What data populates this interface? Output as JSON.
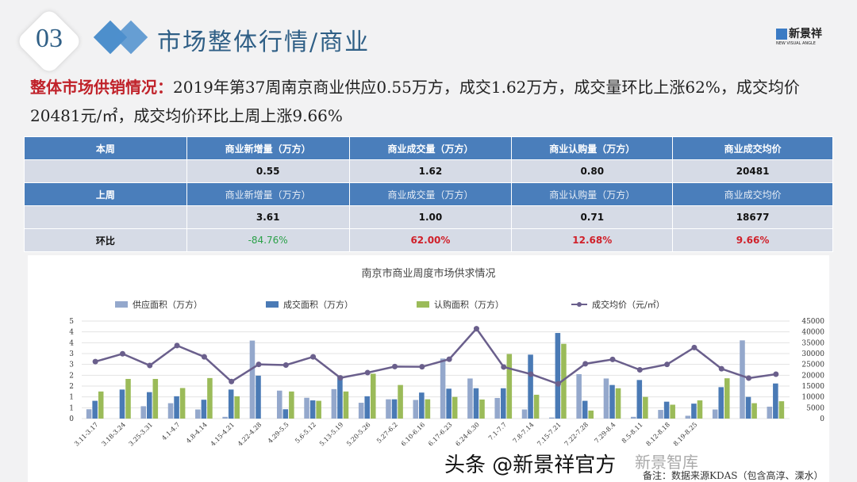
{
  "header": {
    "section_number": "03",
    "title": "市场整体行情/商业",
    "logo_text": "新景祥",
    "logo_sub": "NEW VISUAL ANGLE"
  },
  "summary": {
    "label": "整体市场供销情况：",
    "text": "2019年第37周南京商业供应0.55万方，成交1.62万方，成交量环比上涨62%，成交均价20481元/㎡，成交均价环比上周上涨9.66%"
  },
  "table": {
    "this_week": {
      "label": "本周",
      "headers": [
        "商业新增量（万方）",
        "商业成交量（万方）",
        "商业认购量（万方）",
        "商业成交均价"
      ],
      "values": [
        "0.55",
        "1.62",
        "0.80",
        "20481"
      ]
    },
    "last_week": {
      "label": "上周",
      "headers": [
        "商业新增量（万方）",
        "商业成交量（万方）",
        "商业认购量（万方）",
        "商业成交均价"
      ],
      "values": [
        "3.61",
        "1.00",
        "0.71",
        "18677"
      ]
    },
    "change": {
      "label": "环比",
      "values": [
        "-84.76%",
        "62.00%",
        "12.68%",
        "9.66%"
      ]
    }
  },
  "colors": {
    "supply": "#94a8cc",
    "deal": "#4a7ab5",
    "subscribe": "#9bbb59",
    "price": "#6a5f8c",
    "positive": "#d0202a",
    "negative": "#2aa048"
  },
  "chart_data": {
    "type": "bar+line",
    "title": "南京市商业周度市场供求情况",
    "categories": [
      "3.11-3.17",
      "3.18-3.24",
      "3.25-3.31",
      "4.1-4.7",
      "4.8-4.14",
      "4.15-4.21",
      "4.22-4.28",
      "4.29-5.5",
      "5.6-5.12",
      "5.13-5.19",
      "5.20-5.26",
      "5.27-6.2",
      "6.10-6.16",
      "6.17-6.23",
      "6.24-6.30",
      "7.1-7.7",
      "7.8-7.14",
      "7.15-7.21",
      "7.22-7.28",
      "7.29-8.4",
      "8.5-8.11",
      "8.12-8.18",
      "8.19-8.25",
      "",
      "",
      ""
    ],
    "series": [
      {
        "name": "供应面积（万方）",
        "type": "bar",
        "axis": "left",
        "values": [
          0.43,
          0,
          0.57,
          0.71,
          0.42,
          0.08,
          3.6,
          1.29,
          0.96,
          1.36,
          0.73,
          0.89,
          0.86,
          2.77,
          1.85,
          0.95,
          0.42,
          0.05,
          2.05,
          1.85,
          0.08,
          0.4,
          0.13,
          0.42,
          3.61,
          0.55
        ]
      },
      {
        "name": "成交面积（万方）",
        "type": "bar",
        "axis": "left",
        "values": [
          0.82,
          1.34,
          1.22,
          1.03,
          0.87,
          1.34,
          1.98,
          0.43,
          0.84,
          1.96,
          1.03,
          0.89,
          1.2,
          1.38,
          1.4,
          1.4,
          2.95,
          3.95,
          0.82,
          1.55,
          1.78,
          0.78,
          0.69,
          1.45,
          1.0,
          1.62
        ]
      },
      {
        "name": "认购面积（万方）",
        "type": "bar",
        "axis": "left",
        "values": [
          1.25,
          1.83,
          1.83,
          1.41,
          1.87,
          1.03,
          0,
          1.25,
          0.82,
          1.25,
          2.07,
          1.55,
          0.89,
          1.0,
          0.88,
          2.98,
          1.1,
          3.45,
          0.37,
          1.4,
          1.0,
          0.64,
          0.84,
          1.86,
          0.71,
          0.8
        ]
      },
      {
        "name": "成交均价（元/㎡）",
        "type": "line",
        "axis": "right",
        "values": [
          26300,
          29900,
          24500,
          33700,
          28500,
          17100,
          25000,
          24700,
          28500,
          18800,
          21200,
          24000,
          23900,
          27400,
          41500,
          23800,
          20500,
          16000,
          25300,
          27300,
          22500,
          25000,
          32800,
          23000,
          18677,
          20481
        ]
      }
    ],
    "left_axis": {
      "range": [
        0,
        4.5
      ],
      "tick_labels": [
        "0",
        "1",
        "1",
        "2",
        "2",
        "3",
        "3",
        "4",
        "4",
        "5"
      ]
    },
    "right_axis": {
      "range": [
        0,
        45000
      ],
      "tick_labels": [
        "0",
        "5000",
        "10000",
        "15000",
        "20000",
        "25000",
        "30000",
        "35000",
        "40000",
        "45000"
      ]
    },
    "grid": true,
    "legend": "top"
  },
  "footnote": "备注：数据来源KDAS（包含高淳、溧水）",
  "watermark": {
    "main": "头条 @新景祥官方",
    "secondary": "新景智库"
  }
}
